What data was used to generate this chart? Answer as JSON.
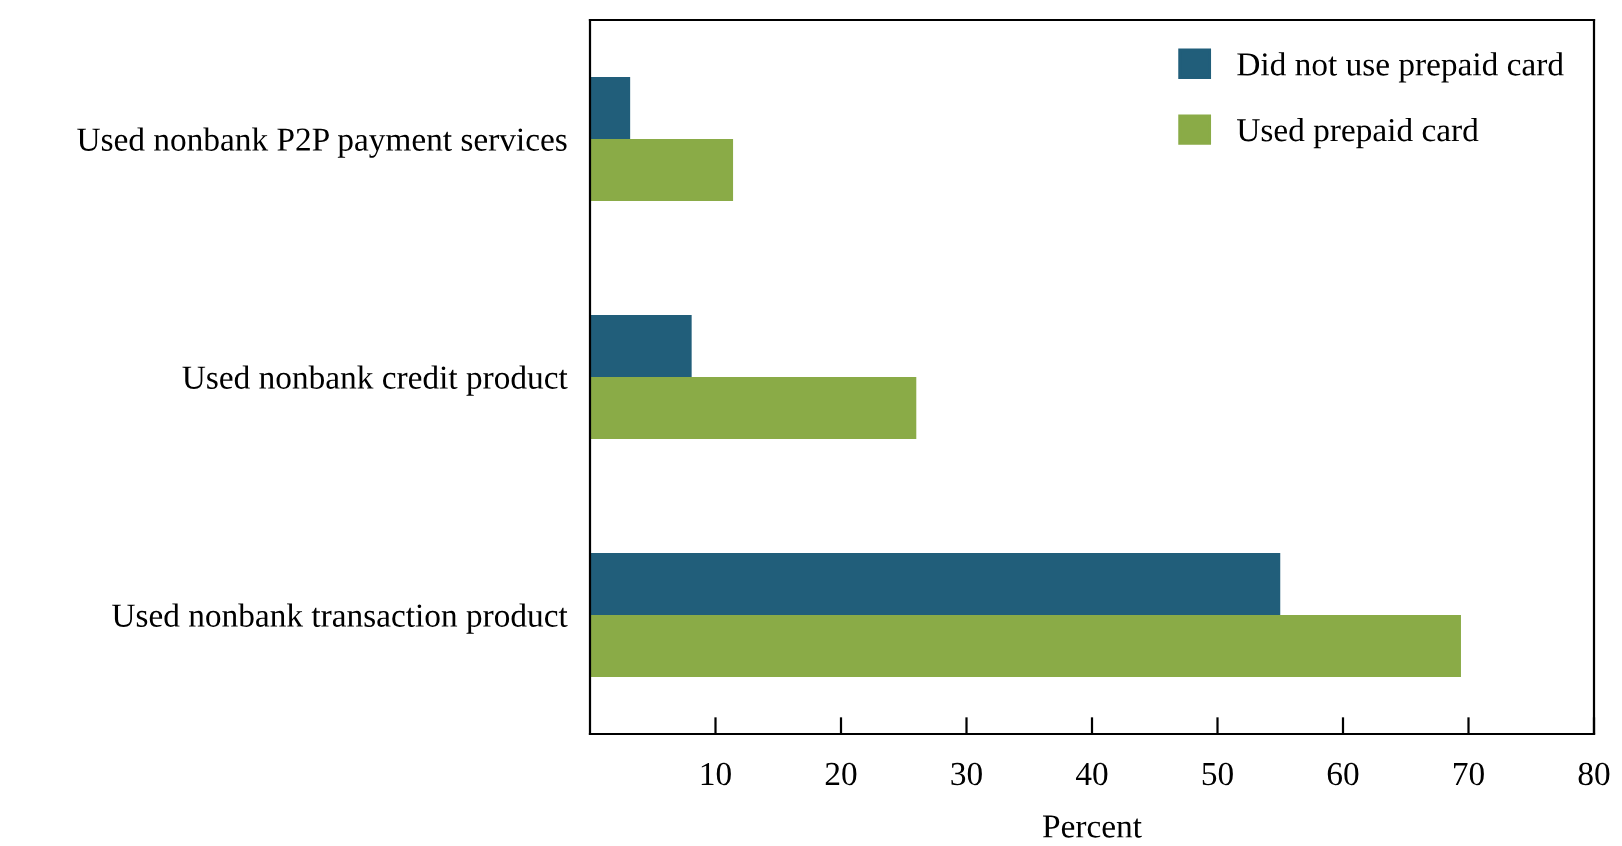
{
  "chart_data": {
    "type": "bar",
    "orientation": "horizontal",
    "xlabel": "Percent",
    "categories": [
      "Used nonbank P2P payment services",
      "Used nonbank credit product",
      "Used nonbank transaction product"
    ],
    "series": [
      {
        "name": "Did not use prepaid card",
        "color": "#215e7a",
        "values": [
          3.2,
          8.1,
          55
        ]
      },
      {
        "name": "Used prepaid card",
        "color": "#8aab47",
        "values": [
          11.4,
          26.0,
          69.4
        ]
      }
    ],
    "xlim": [
      0,
      80
    ],
    "xticks": [
      10,
      20,
      30,
      40,
      50,
      60,
      70,
      80
    ],
    "grid": false,
    "legend": "top right"
  }
}
